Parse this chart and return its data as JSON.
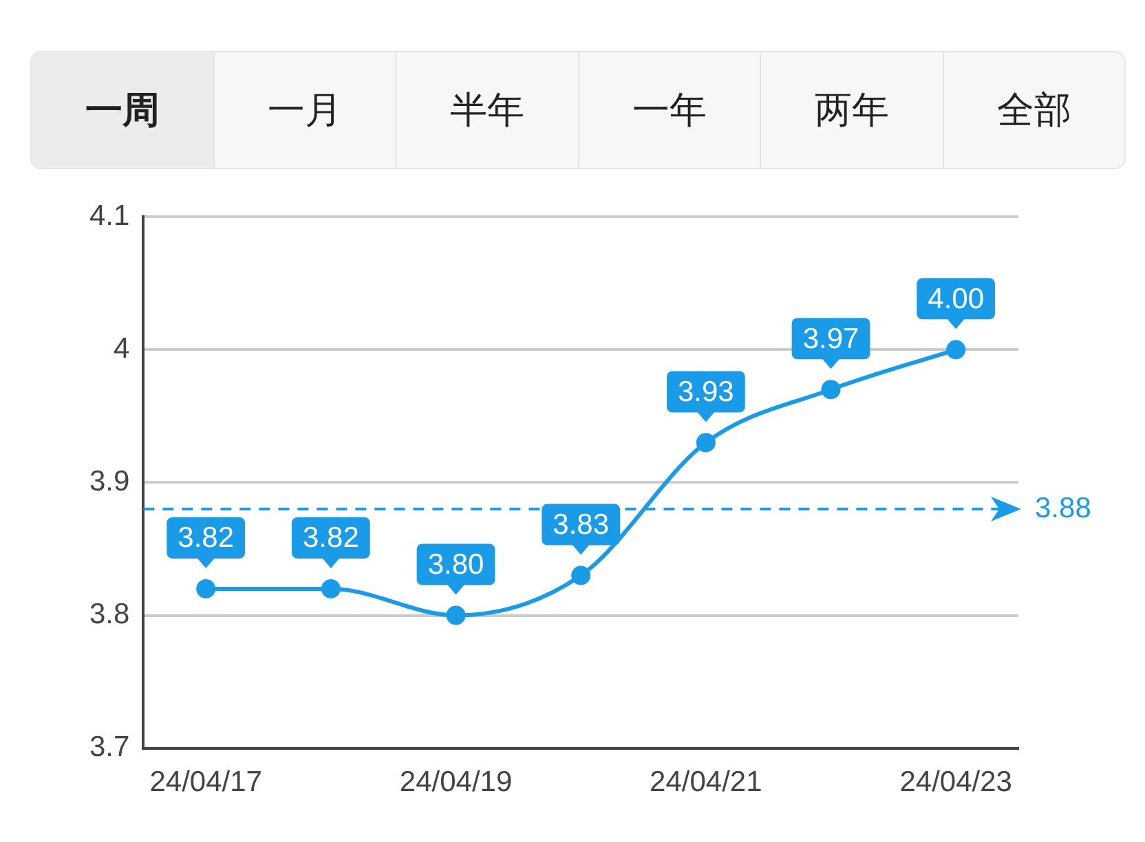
{
  "chart_data": {
    "type": "line",
    "annotations": [
      "一周",
      "一月",
      "半年",
      "一年",
      "两年",
      "全部"
    ],
    "categories": [
      "24/04/17",
      null,
      "24/04/19",
      null,
      "24/04/21",
      null,
      "24/04/23"
    ],
    "series": [
      {
        "color": "#1a9be8",
        "values": [
          3.82,
          3.82,
          3.8,
          3.83,
          3.93,
          3.97,
          4.0
        ],
        "value_labels": [
          "3.82",
          "3.82",
          "3.80",
          "3.83",
          "3.93",
          "3.97",
          "4.00"
        ]
      }
    ],
    "ylim": [
      3.7,
      4.1
    ],
    "yticks": [
      3.7,
      3.8,
      3.9,
      4,
      4.1
    ],
    "grid": "y",
    "marker": "circle",
    "line_style": "solid",
    "legend": false,
    "ref_lines": [
      {
        "axis": "y",
        "value": 3.88,
        "label": "3.88",
        "color": "#1a9be8",
        "line_style": "dashed"
      }
    ]
  }
}
